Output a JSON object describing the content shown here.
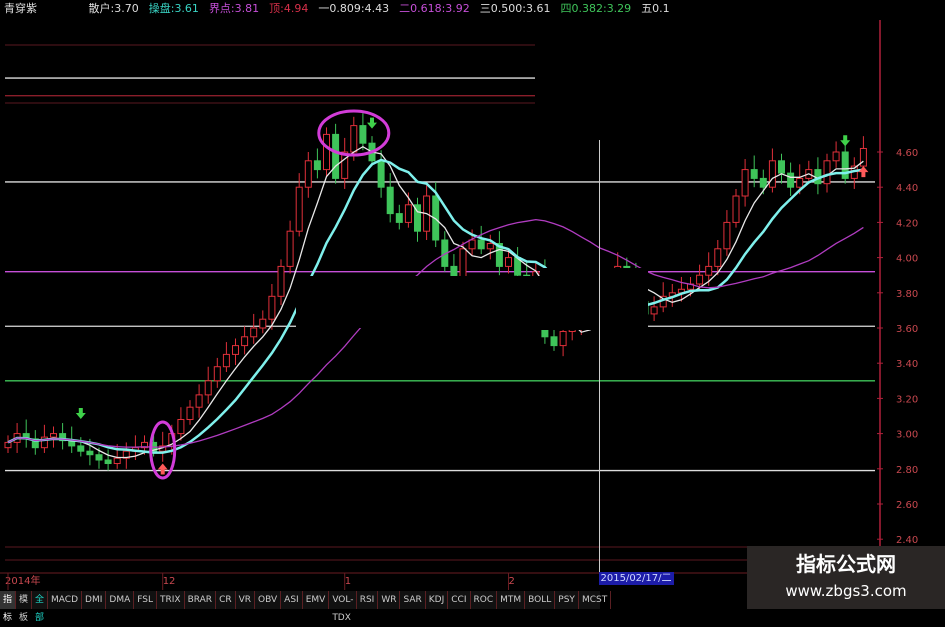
{
  "legend": {
    "title": "青穿紫",
    "items": [
      {
        "label": "散户:",
        "value": "3.70",
        "color": "#dddddd"
      },
      {
        "label": "操盘:",
        "value": "3.61",
        "color": "#39d4c4"
      },
      {
        "label": "界点:",
        "value": "3.81",
        "color": "#c64fd8"
      },
      {
        "label": "顶:",
        "value": "4.94",
        "color": "#d8304a"
      },
      {
        "label": "一0.809:",
        "value": "4.43",
        "color": "#dddddd"
      },
      {
        "label": "二0.618:",
        "value": "3.92",
        "color": "#c64fd8"
      },
      {
        "label": "三0.500:",
        "value": "3.61",
        "color": "#dddddd"
      },
      {
        "label": "四0.382:",
        "value": "3.29",
        "color": "#3fc45a"
      },
      {
        "label": "五0.1",
        "value": "",
        "color": "#dddddd"
      }
    ]
  },
  "tabs": [
    "指标",
    "模板",
    "全部",
    "MACD",
    "DMI",
    "DMA",
    "FSL",
    "TRIX",
    "BRAR",
    "CR",
    "VR",
    "OBV",
    "ASI",
    "EMV",
    "VOL-TDX",
    "RSI",
    "WR",
    "SAR",
    "KDJ",
    "CCI",
    "ROC",
    "MTM",
    "BOLL",
    "PSY",
    "MCST"
  ],
  "crosshair_date": "2015/02/17/二",
  "watermark": {
    "title": "指标公式网",
    "url": "www.zbgs3.com"
  },
  "chart_data": {
    "type": "candlestick",
    "ylim": [
      2.35,
      4.95
    ],
    "y_ticks": [
      "4.60",
      "4.40",
      "4.20",
      "4.00",
      "3.80",
      "3.60",
      "3.40",
      "3.20",
      "3.00",
      "2.80",
      "2.60",
      "2.40"
    ],
    "x_tick_labels": [
      {
        "label": "2014年",
        "index": 0
      },
      {
        "label": "12",
        "index": 17
      },
      {
        "label": "1",
        "index": 37
      },
      {
        "label": "2",
        "index": 55
      }
    ],
    "crosshair_index": 65,
    "closes": [
      2.95,
      3.0,
      2.97,
      2.92,
      2.98,
      3.0,
      2.96,
      2.93,
      2.9,
      2.88,
      2.85,
      2.83,
      2.86,
      2.9,
      2.92,
      2.95,
      2.9,
      2.93,
      3.0,
      3.08,
      3.15,
      3.22,
      3.3,
      3.38,
      3.45,
      3.5,
      3.55,
      3.6,
      3.65,
      3.78,
      3.95,
      4.15,
      4.4,
      4.55,
      4.5,
      4.7,
      4.45,
      4.6,
      4.75,
      4.65,
      4.55,
      4.4,
      4.25,
      4.2,
      4.3,
      4.15,
      4.35,
      4.1,
      3.95,
      3.85,
      4.05,
      4.1,
      4.05,
      4.08,
      3.95,
      4.0,
      3.9,
      3.85,
      3.92,
      3.55,
      3.5,
      3.58,
      3.6,
      3.65,
      3.62,
      3.7,
      3.85,
      3.95,
      3.9,
      3.75,
      3.68,
      3.72,
      3.78,
      3.8,
      3.82,
      3.85,
      3.9,
      3.95,
      4.05,
      4.2,
      4.35,
      4.5,
      4.45,
      4.4,
      4.55,
      4.48,
      4.4,
      4.45,
      4.5,
      4.42,
      4.55,
      4.6,
      4.45,
      4.52,
      4.62
    ],
    "moving_averages": [
      {
        "period": 5,
        "color": "#e8e8e8"
      },
      {
        "period": 10,
        "color": "#7ff0ec"
      },
      {
        "period": 30,
        "color": "#b03cc0"
      }
    ],
    "levels": [
      {
        "price": 5.02,
        "color": "#dddddd",
        "partial": "left"
      },
      {
        "price": 4.92,
        "color": "#8a1e2a",
        "partial": "left"
      },
      {
        "price": 4.43,
        "color": "#dddddd"
      },
      {
        "price": 3.92,
        "color": "#c64fd8"
      },
      {
        "price": 3.61,
        "color": "#dddddd"
      },
      {
        "price": 3.3,
        "color": "#3fc45a"
      },
      {
        "price": 2.79,
        "color": "#dddddd"
      }
    ],
    "signals": [
      {
        "type": "sell",
        "index": 8,
        "color": "#3fd24a"
      },
      {
        "type": "buy",
        "index": 17,
        "color": "#ff5a5a"
      },
      {
        "type": "sell",
        "index": 40,
        "color": "#3fd24a"
      },
      {
        "type": "sell",
        "index": 92,
        "color": "#3fd24a"
      },
      {
        "type": "buy",
        "index": 94,
        "color": "#ff5a5a"
      }
    ],
    "highlight_circles": [
      17,
      38
    ],
    "up_color": "#e0303a",
    "down_color": "#3fc45a"
  }
}
